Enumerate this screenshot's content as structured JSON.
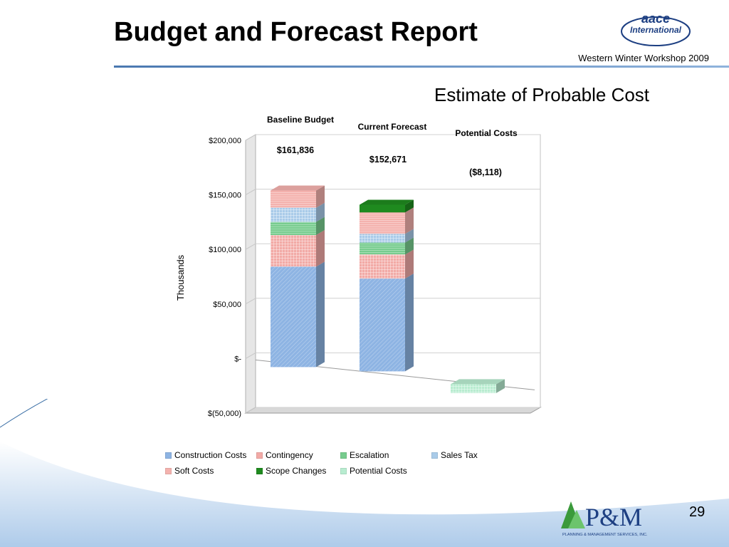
{
  "slide": {
    "title": "Budget and Forecast Report",
    "workshop": "Western Winter Workshop 2009",
    "page_number": "29",
    "aace_logo_text": "aace",
    "aace_logo_subtext": "International",
    "pm_logo_text": "P&M",
    "pm_logo_subtext": "PLANNING & MANAGEMENT SERVICES, INC."
  },
  "chart_heading": "Estimate of Probable Cost",
  "chart_data": {
    "type": "bar",
    "stacked": true,
    "three_d": true,
    "ylabel": "Thousands",
    "ylim": [
      -50000,
      200000
    ],
    "yticks": [
      {
        "value": 200000,
        "label": "$200,000"
      },
      {
        "value": 150000,
        "label": "$150,000"
      },
      {
        "value": 100000,
        "label": "$100,000"
      },
      {
        "value": 50000,
        "label": "$50,000"
      },
      {
        "value": 0,
        "label": "$-"
      },
      {
        "value": -50000,
        "label": "$(50,000)"
      }
    ],
    "categories": [
      "Baseline Budget",
      "Current Forecast",
      "Potential Costs"
    ],
    "totals": [
      "$161,836",
      "$152,671",
      "($8,118)"
    ],
    "legend_position": "bottom",
    "series": [
      {
        "name": "Construction Costs",
        "color": "#8eb4e3",
        "values": [
          92000,
          85000,
          0
        ]
      },
      {
        "name": "Contingency",
        "color": "#f2aaa6",
        "values": [
          29000,
          22000,
          0
        ]
      },
      {
        "name": "Escalation",
        "color": "#77cc8e",
        "values": [
          12000,
          11000,
          0
        ]
      },
      {
        "name": "Sales Tax",
        "color": "#a9cbe9",
        "values": [
          13000,
          8000,
          0
        ]
      },
      {
        "name": "Soft Costs",
        "color": "#f4b2ae",
        "values": [
          15836,
          19671,
          0
        ]
      },
      {
        "name": "Scope Changes",
        "color": "#1f8a1f",
        "values": [
          0,
          7000,
          0
        ]
      },
      {
        "name": "Potential Costs",
        "color": "#b8ecd0",
        "values": [
          0,
          0,
          -8118
        ]
      }
    ]
  }
}
